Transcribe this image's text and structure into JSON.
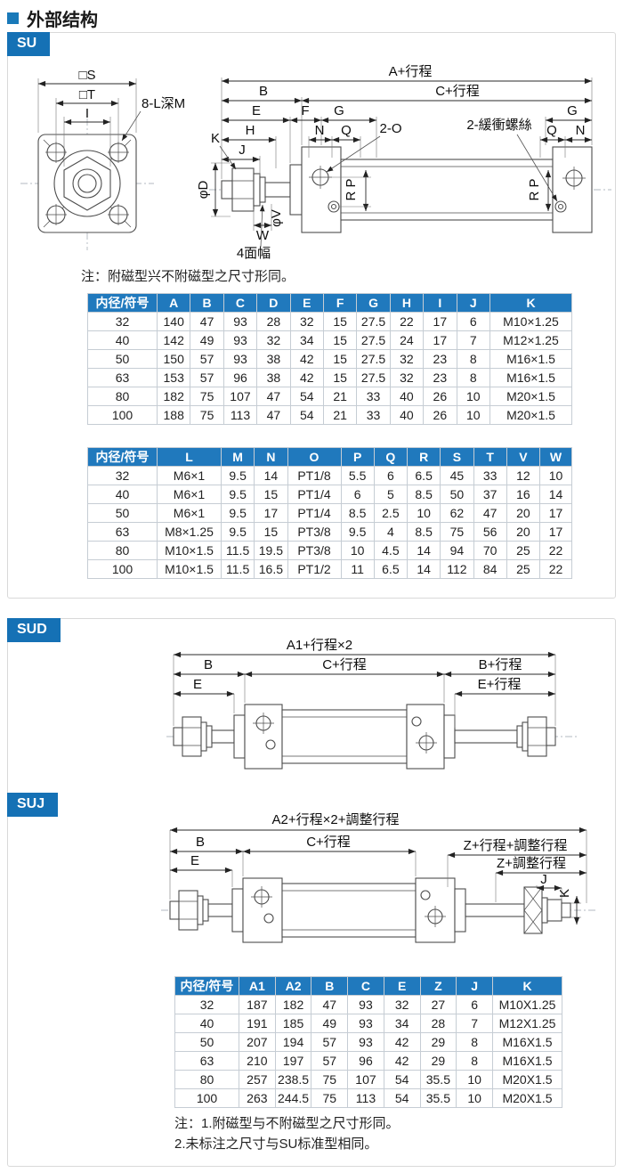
{
  "page": {
    "title": "外部结构"
  },
  "colors": {
    "accent": "#1571b5",
    "table_header": "#2079bd"
  },
  "su": {
    "badge": "SU",
    "front": {
      "s": "□S",
      "t": "□T",
      "i": "I",
      "holes": "8-L深M"
    },
    "side": {
      "a": "A+行程",
      "b": "B",
      "c": "C+行程",
      "e": "E",
      "f": "F",
      "g": "G",
      "h": "H",
      "j": "J",
      "k": "K",
      "n": "N",
      "q": "Q",
      "o": "2-O",
      "buffer": "2-緩衝螺絲",
      "rp": "R P",
      "phi_d": "φD",
      "phi_v": "φV",
      "w": "W",
      "flats": "4面幅"
    },
    "note": "注：附磁型兴不附磁型之尺寸形同。",
    "table_abk": {
      "headers": [
        "内径/符号",
        "A",
        "B",
        "C",
        "D",
        "E",
        "F",
        "G",
        "H",
        "I",
        "J",
        "K"
      ],
      "rows": [
        [
          "32",
          "140",
          "47",
          "93",
          "28",
          "32",
          "15",
          "27.5",
          "22",
          "17",
          "6",
          "M10×1.25"
        ],
        [
          "40",
          "142",
          "49",
          "93",
          "32",
          "34",
          "15",
          "27.5",
          "24",
          "17",
          "7",
          "M12×1.25"
        ],
        [
          "50",
          "150",
          "57",
          "93",
          "38",
          "42",
          "15",
          "27.5",
          "32",
          "23",
          "8",
          "M16×1.5"
        ],
        [
          "63",
          "153",
          "57",
          "96",
          "38",
          "42",
          "15",
          "27.5",
          "32",
          "23",
          "8",
          "M16×1.5"
        ],
        [
          "80",
          "182",
          "75",
          "107",
          "47",
          "54",
          "21",
          "33",
          "40",
          "26",
          "10",
          "M20×1.5"
        ],
        [
          "100",
          "188",
          "75",
          "113",
          "47",
          "54",
          "21",
          "33",
          "40",
          "26",
          "10",
          "M20×1.5"
        ]
      ]
    },
    "table_lw": {
      "headers": [
        "内径/符号",
        "L",
        "M",
        "N",
        "O",
        "P",
        "Q",
        "R",
        "S",
        "T",
        "V",
        "W"
      ],
      "rows": [
        [
          "32",
          "M6×1",
          "9.5",
          "14",
          "PT1/8",
          "5.5",
          "6",
          "6.5",
          "45",
          "33",
          "12",
          "10"
        ],
        [
          "40",
          "M6×1",
          "9.5",
          "15",
          "PT1/4",
          "6",
          "5",
          "8.5",
          "50",
          "37",
          "16",
          "14"
        ],
        [
          "50",
          "M6×1",
          "9.5",
          "17",
          "PT1/4",
          "8.5",
          "2.5",
          "10",
          "62",
          "47",
          "20",
          "17"
        ],
        [
          "63",
          "M8×1.25",
          "9.5",
          "15",
          "PT3/8",
          "9.5",
          "4",
          "8.5",
          "75",
          "56",
          "20",
          "17"
        ],
        [
          "80",
          "M10×1.5",
          "11.5",
          "19.5",
          "PT3/8",
          "10",
          "4.5",
          "14",
          "94",
          "70",
          "25",
          "22"
        ],
        [
          "100",
          "M10×1.5",
          "11.5",
          "16.5",
          "PT1/2",
          "11",
          "6.5",
          "14",
          "112",
          "84",
          "25",
          "22"
        ]
      ]
    }
  },
  "sud": {
    "badge": "SUD",
    "dims": {
      "a1": "A1+行程×2",
      "b": "B",
      "c": "C+行程",
      "b_stroke": "B+行程",
      "e": "E",
      "e_stroke": "E+行程"
    }
  },
  "suj": {
    "badge": "SUJ",
    "dims": {
      "a2": "A2+行程×2+調整行程",
      "b": "B",
      "c": "C+行程",
      "z_stroke": "Z+行程+調整行程",
      "e": "E",
      "z_adj": "Z+調整行程",
      "j": "J",
      "k": "K"
    },
    "table": {
      "headers": [
        "内径/符号",
        "A1",
        "A2",
        "B",
        "C",
        "E",
        "Z",
        "J",
        "K"
      ],
      "rows": [
        [
          "32",
          "187",
          "182",
          "47",
          "93",
          "32",
          "27",
          "6",
          "M10X1.25"
        ],
        [
          "40",
          "191",
          "185",
          "49",
          "93",
          "34",
          "28",
          "7",
          "M12X1.25"
        ],
        [
          "50",
          "207",
          "194",
          "57",
          "93",
          "42",
          "29",
          "8",
          "M16X1.5"
        ],
        [
          "63",
          "210",
          "197",
          "57",
          "96",
          "42",
          "29",
          "8",
          "M16X1.5"
        ],
        [
          "80",
          "257",
          "238.5",
          "75",
          "107",
          "54",
          "35.5",
          "10",
          "M20X1.5"
        ],
        [
          "100",
          "263",
          "244.5",
          "75",
          "113",
          "54",
          "35.5",
          "10",
          "M20X1.5"
        ]
      ]
    },
    "notes": [
      "注：1.附磁型与不附磁型之尺寸形同。",
      "2.未标注之尺寸与SU标准型相同。"
    ]
  }
}
